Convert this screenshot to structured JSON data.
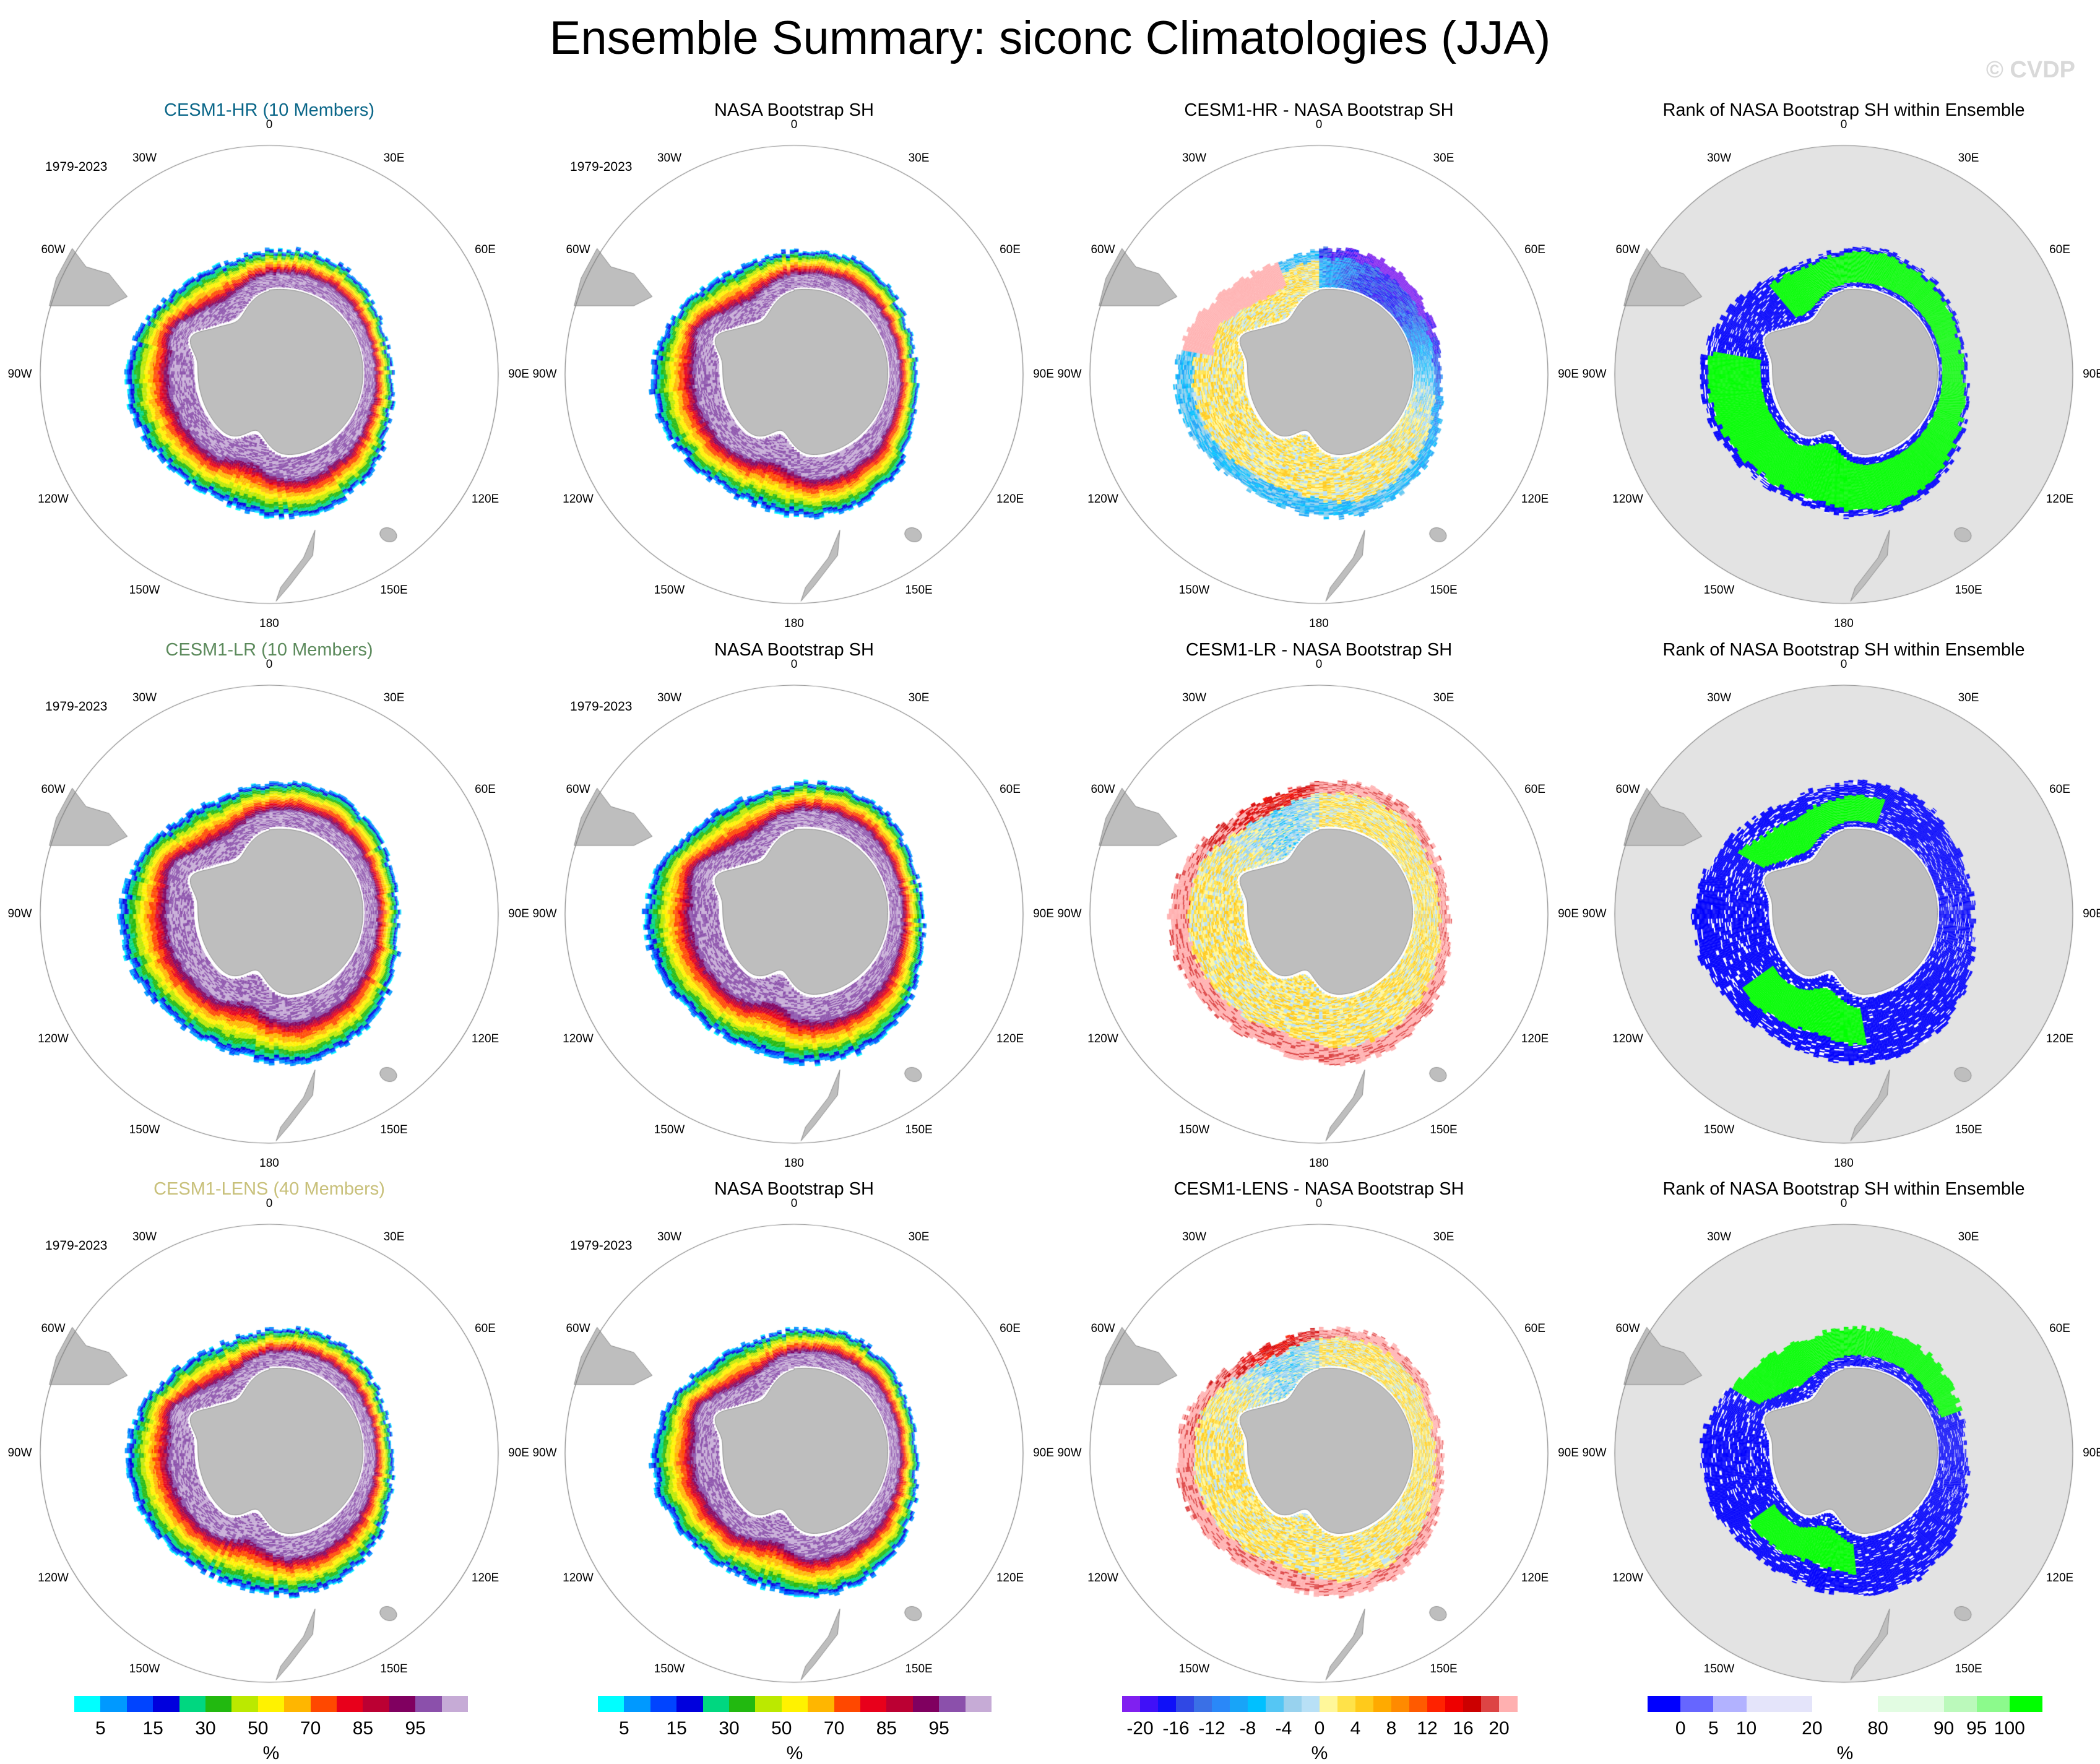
{
  "chart_data": {
    "type": "heatmap",
    "title": "Ensemble Summary: siconc Climatologies (JJA)",
    "watermark": "© CVDP",
    "projection": "south-polar-stereographic",
    "longitude_labels": [
      "0",
      "30E",
      "60E",
      "90E",
      "120E",
      "150E",
      "180",
      "150W",
      "120W",
      "90W",
      "60W",
      "30W"
    ],
    "period_label": "1979-2023",
    "colorbars": {
      "siconc": {
        "unit": "%",
        "boundaries": [
          5,
          10,
          15,
          20,
          30,
          40,
          50,
          60,
          70,
          80,
          85,
          90,
          95,
          99
        ],
        "tick_labels": [
          "5",
          "15",
          "30",
          "50",
          "70",
          "85",
          "95"
        ],
        "tick_positions": [
          5,
          15,
          30,
          50,
          70,
          85,
          95
        ],
        "colors": [
          "#00ffff",
          "#0099ff",
          "#0044ff",
          "#0000dd",
          "#00d780",
          "#22b910",
          "#bbe900",
          "#fff200",
          "#ffb600",
          "#ff4800",
          "#e8001b",
          "#bb0033",
          "#800060",
          "#8b50ab",
          "#c6abd6"
        ]
      },
      "diff": {
        "unit": "%",
        "boundaries": [
          -20,
          -18,
          -16,
          -14,
          -12,
          -10,
          -8,
          -6,
          -4,
          -2,
          0,
          2,
          4,
          6,
          8,
          10,
          12,
          14,
          16,
          18,
          20
        ],
        "tick_labels": [
          "-20",
          "-16",
          "-12",
          "-8",
          "-4",
          "0",
          "4",
          "8",
          "12",
          "16",
          "20"
        ],
        "tick_positions": [
          -20,
          -16,
          -12,
          -8,
          -4,
          0,
          4,
          8,
          12,
          16,
          20
        ],
        "colors": [
          "#8020f0",
          "#4010f8",
          "#0f10f8",
          "#3048e4",
          "#3a70e6",
          "#2a88f8",
          "#18a4f8",
          "#00c0ff",
          "#55c6f4",
          "#98d2ee",
          "#b8e0f6",
          "#fff79a",
          "#ffe249",
          "#ffca1b",
          "#ffaa00",
          "#ff8a00",
          "#ff5a00",
          "#ff2200",
          "#ee0000",
          "#cc0000",
          "#dd4444",
          "#ffb0b0"
        ]
      },
      "rank": {
        "unit": "%",
        "boundaries": [
          0,
          5,
          10,
          20,
          80,
          90,
          95,
          100
        ],
        "tick_labels": [
          "0",
          "5",
          "10",
          "20",
          "80",
          "90",
          "95",
          "100"
        ],
        "tick_positions": [
          0,
          5,
          10,
          20,
          80,
          90,
          95,
          100
        ],
        "bin_relative_widths": [
          1,
          1,
          1,
          2,
          2,
          2,
          1,
          1,
          1
        ],
        "colors": [
          "#0000ff",
          "#6666ff",
          "#b2b2ff",
          "#e4e4fa",
          "#ffffff",
          "#e2fce2",
          "#bbf9bb",
          "#8cfa8c",
          "#00ff00"
        ]
      }
    },
    "rows": [
      {
        "model": "CESM1-HR (10 Members)",
        "model_color": "#0a6688",
        "panels": [
          {
            "title": "CESM1-HR (10 Members)",
            "kind": "siconc",
            "show_period": true,
            "summary": "Ice edge extends ~55-60S; highest concentration (>95%) in Ross & Amundsen seas; Weddell Sea lower (50-85%)"
          },
          {
            "title": "NASA Bootstrap SH",
            "kind": "siconc",
            "show_period": true,
            "summary": "Observed ice: >95% in Weddell and Ross seas, sharp marginal ice zone gradient"
          },
          {
            "title": "CESM1-HR - NASA Bootstrap SH",
            "kind": "diff",
            "show_period": false,
            "summary": "Strong negative bias (< -20%) in Weddell Sea and Indian sector; positive bias near Antarctic Peninsula and Ross Sea edge"
          },
          {
            "title": "Rank of NASA Bootstrap SH within Ensemble",
            "kind": "rank",
            "show_period": false,
            "summary": "Observation mostly ranks 100% (above all members) in Weddell/Ross sectors; 0% near coast and outer edge"
          }
        ]
      },
      {
        "model": "CESM1-LR (10 Members)",
        "model_color": "#5c8a5c",
        "panels": [
          {
            "title": "CESM1-LR (10 Members)",
            "kind": "siconc",
            "show_period": true,
            "summary": "Broad ice pack with >95% interior; edge extends further north than observed"
          },
          {
            "title": "NASA Bootstrap SH",
            "kind": "siconc",
            "show_period": true,
            "summary": "Observed ice concentration climatology"
          },
          {
            "title": "CESM1-LR - NASA Bootstrap SH",
            "kind": "diff",
            "show_period": false,
            "summary": "Positive bias (> +20%) around outer ice edge; weak negative bias in Weddell interior and strong negative in Amundsen Sea"
          },
          {
            "title": "Rank of NASA Bootstrap SH within Ensemble",
            "kind": "rank",
            "show_period": false,
            "summary": "Observation ranks 0% (below all members) around most of the ice edge; 100% in Weddell and Ross interiors"
          }
        ]
      },
      {
        "model": "CESM1-LENS (40 Members)",
        "model_color": "#c8c07a",
        "panels": [
          {
            "title": "CESM1-LENS (40 Members)",
            "kind": "siconc",
            "show_period": true,
            "summary": "Ice pack similar to observed; >95% interior, sharp edge gradient"
          },
          {
            "title": "NASA Bootstrap SH",
            "kind": "siconc",
            "show_period": true,
            "summary": "Observed ice concentration climatology"
          },
          {
            "title": "CESM1-LENS - NASA Bootstrap SH",
            "kind": "diff",
            "show_period": false,
            "summary": "Mixed: negative bias in Weddell interior and eastern sector, positive bias ring at outer edge"
          },
          {
            "title": "Rank of NASA Bootstrap SH within Ensemble",
            "kind": "rank",
            "show_period": false,
            "summary": "Observation ranks 100% in Weddell and Ross interiors; 0% around East Antarctic sector and outer edge"
          }
        ]
      }
    ]
  }
}
